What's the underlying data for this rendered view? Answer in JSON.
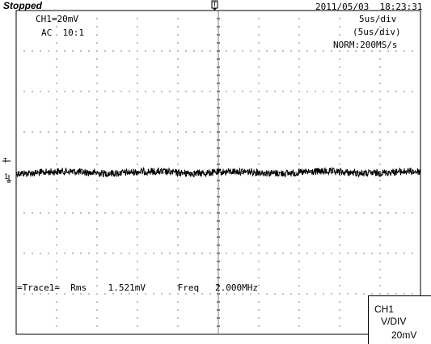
{
  "header": {
    "status": "Stopped",
    "datetime": "2011/05/03  18:23:31"
  },
  "channel_info": {
    "scale": "CH1=20mV",
    "coupling": "AC  10:1"
  },
  "timebase": {
    "div": "5us/div",
    "div_paren": "(5us/div)",
    "acq": "NORM:200MS/s"
  },
  "markers": {
    "trigger_top": "T",
    "trigger_left": "T",
    "channel_ground": "1"
  },
  "measurement": {
    "text": "=Trace1=  Rms    1.521mV      Freq   2.000MHz"
  },
  "ch_box": {
    "line1": "CH1",
    "line2": "V/DIV",
    "line3": "20mV"
  },
  "colors": {
    "background": "#ffffff",
    "trace": "#000000",
    "grid": "#000000"
  }
}
